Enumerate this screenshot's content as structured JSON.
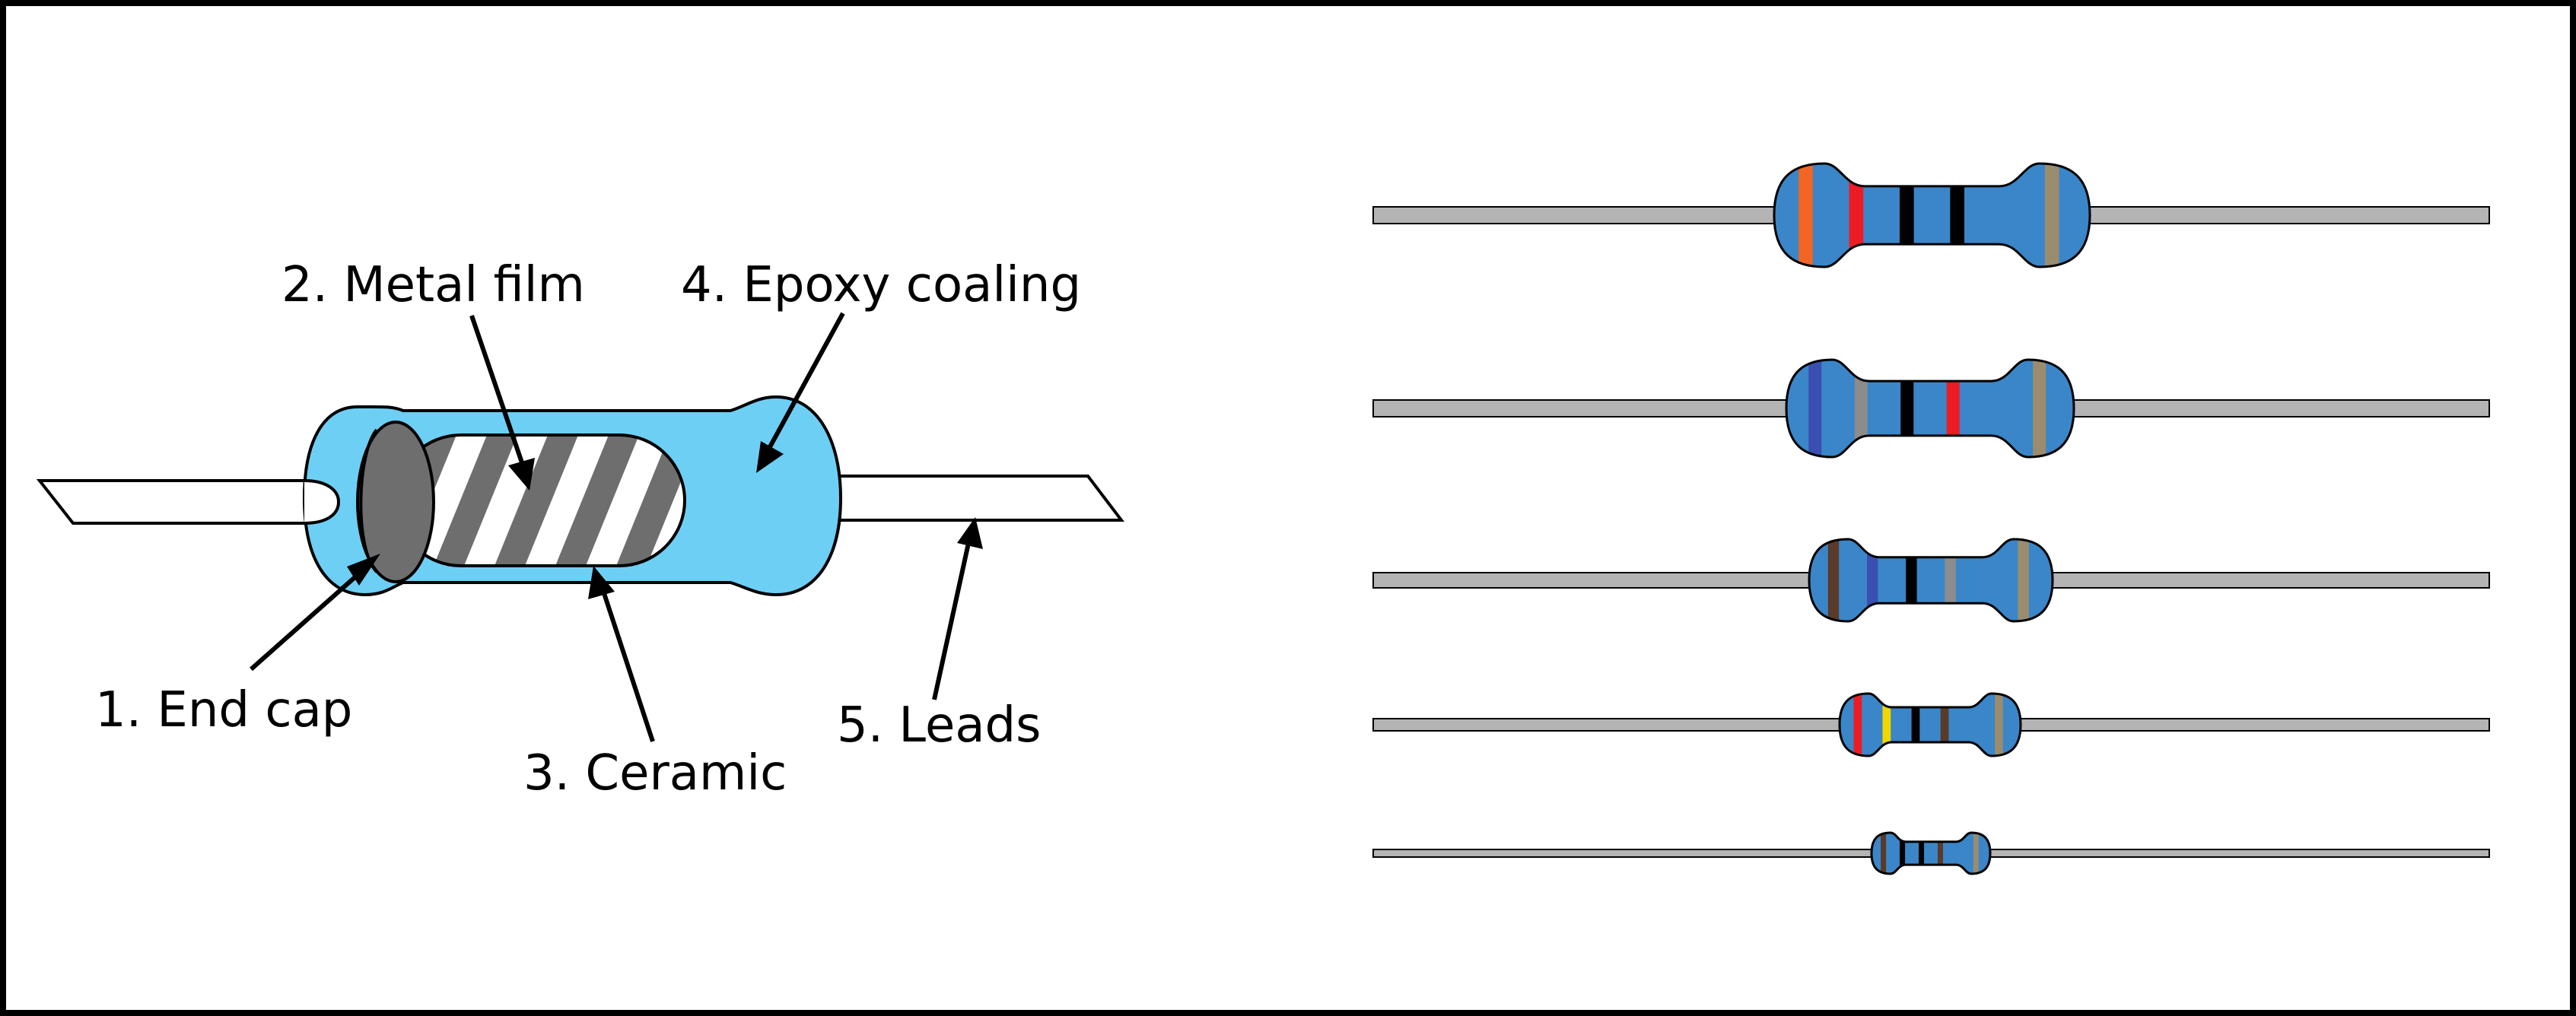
{
  "labels": {
    "end_cap": "1. End cap",
    "metal_film": "2. Metal film",
    "ceramic": "3. Ceramic",
    "epoxy": "4. Epoxy coaling",
    "leads": "5. Leads"
  },
  "colors": {
    "epoxy_body": "#6ecff5",
    "end_cap": "#6e6e6e",
    "metal_film": "#6e6e6e",
    "ceramic": "#ffffff",
    "resistor_body": "#3a86c8",
    "lead_wire": "#b4b4b4",
    "outline": "#000000"
  },
  "resistors": [
    {
      "bands": [
        "#f26522",
        "#ed1c24",
        "#000000",
        "#000000",
        "#9b8c6e"
      ]
    },
    {
      "bands": [
        "#3a4fb0",
        "#8c8c8c",
        "#000000",
        "#ed1c24",
        "#9b8c6e"
      ]
    },
    {
      "bands": [
        "#5a3a28",
        "#3a4fb0",
        "#000000",
        "#8c8c8c",
        "#9b8c6e"
      ]
    },
    {
      "bands": [
        "#ed1c24",
        "#f2d600",
        "#000000",
        "#5a3a28",
        "#9b8c6e"
      ]
    },
    {
      "bands": [
        "#5a3a28",
        "#000000",
        "#000000",
        "#5a3a28",
        "#9b8c6e"
      ]
    }
  ]
}
